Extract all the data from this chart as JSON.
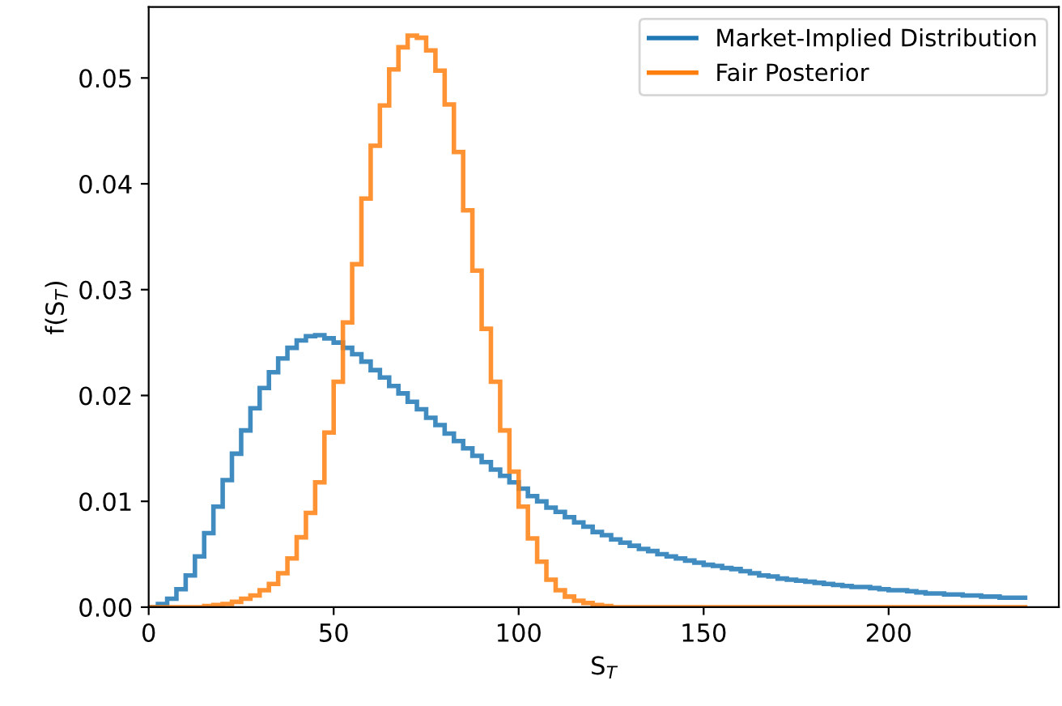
{
  "chart_data": {
    "type": "histogram",
    "xlabel": "S$_{T}$",
    "ylabel": "f(S$_{T}$)",
    "bins": [
      0,
      2.5,
      5,
      7.5,
      10,
      12.5,
      15,
      17.5,
      20,
      22.5,
      25,
      27.5,
      30,
      32.5,
      35,
      37.5,
      40,
      42.5,
      45,
      47.5,
      50,
      52.5,
      55,
      57.5,
      60,
      62.5,
      65,
      67.5,
      70,
      72.5,
      75,
      77.5,
      80,
      82.5,
      85,
      87.5,
      90,
      92.5,
      95,
      97.5,
      100,
      102.5,
      105,
      107.5,
      110,
      112.5,
      115,
      117.5,
      120,
      122.5,
      125,
      127.5,
      130,
      132.5,
      135,
      137.5,
      140,
      142.5,
      145,
      147.5,
      150,
      152.5,
      155,
      157.5,
      160,
      162.5,
      165,
      167.5,
      170,
      172.5,
      175,
      177.5,
      180,
      182.5,
      185,
      187.5,
      190,
      192.5,
      195,
      197.5,
      200,
      202.5,
      205,
      207.5,
      210,
      212.5,
      215,
      217.5,
      220,
      222.5,
      225,
      227.5,
      230,
      232.5,
      235,
      237.5
    ],
    "series": [
      {
        "name": "Market-Implied Distribution",
        "color": "#1f77b4",
        "values": [
          0.0,
          0.0003,
          0.0008,
          0.0017,
          0.003,
          0.0048,
          0.007,
          0.0095,
          0.012,
          0.0145,
          0.0167,
          0.0188,
          0.0207,
          0.0222,
          0.0235,
          0.0245,
          0.0252,
          0.0256,
          0.0257,
          0.0254,
          0.025,
          0.0245,
          0.0239,
          0.0232,
          0.0224,
          0.0217,
          0.0209,
          0.0202,
          0.0194,
          0.0187,
          0.0179,
          0.0172,
          0.0164,
          0.0157,
          0.015,
          0.0143,
          0.0137,
          0.013,
          0.0124,
          0.0118,
          0.0112,
          0.0105,
          0.01,
          0.0094,
          0.009,
          0.0085,
          0.008,
          0.0076,
          0.0071,
          0.0068,
          0.0064,
          0.0061,
          0.0058,
          0.0055,
          0.0053,
          0.005,
          0.0048,
          0.0046,
          0.0044,
          0.0042,
          0.004,
          0.0039,
          0.0037,
          0.0036,
          0.0034,
          0.0032,
          0.003,
          0.0029,
          0.0027,
          0.0026,
          0.0025,
          0.0024,
          0.0023,
          0.0022,
          0.0021,
          0.002,
          0.0019,
          0.0019,
          0.0018,
          0.0017,
          0.0016,
          0.0016,
          0.0015,
          0.0014,
          0.0013,
          0.0013,
          0.0012,
          0.0012,
          0.0011,
          0.0011,
          0.001,
          0.001,
          0.0009,
          0.0009,
          0.0009
        ]
      },
      {
        "name": "Fair Posterior",
        "color": "#ff7f0e",
        "values": [
          0,
          0,
          0,
          0,
          0,
          0,
          0.0001,
          0.0002,
          0.0003,
          0.0005,
          0.0008,
          0.0011,
          0.0016,
          0.0022,
          0.0032,
          0.0046,
          0.0066,
          0.0089,
          0.0118,
          0.0165,
          0.0213,
          0.0269,
          0.0324,
          0.0386,
          0.0436,
          0.0474,
          0.0508,
          0.0529,
          0.054,
          0.0538,
          0.0526,
          0.0507,
          0.0475,
          0.043,
          0.0375,
          0.0318,
          0.0263,
          0.0213,
          0.0167,
          0.0128,
          0.0095,
          0.0065,
          0.0043,
          0.0026,
          0.0016,
          0.001,
          0.0006,
          0.0004,
          0.0002,
          0.0001,
          0,
          0,
          0,
          0,
          0,
          0,
          0,
          0,
          0,
          0,
          0,
          0,
          0,
          0,
          0,
          0,
          0,
          0,
          0,
          0,
          0,
          0,
          0,
          0,
          0,
          0,
          0,
          0,
          0,
          0,
          0,
          0,
          0,
          0,
          0,
          0,
          0,
          0,
          0,
          0,
          0,
          0,
          0,
          0,
          0
        ]
      }
    ],
    "xlim": [
      0,
      246
    ],
    "ylim": [
      0,
      0.0567
    ],
    "xticks": [
      0,
      50,
      100,
      150,
      200
    ],
    "yticks": [
      {
        "value": 0,
        "label": "0.00"
      },
      {
        "value": 0.01,
        "label": "0.01"
      },
      {
        "value": 0.02,
        "label": "0.02"
      },
      {
        "value": 0.03,
        "label": "0.03"
      },
      {
        "value": 0.04,
        "label": "0.04"
      },
      {
        "value": 0.05,
        "label": "0.05"
      }
    ],
    "legend": "top right",
    "grid": false
  }
}
